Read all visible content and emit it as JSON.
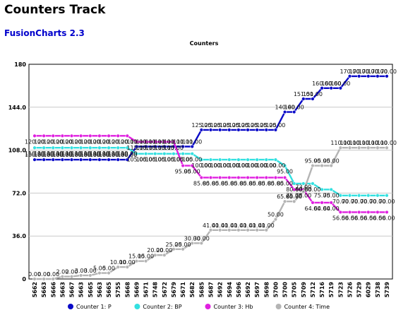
{
  "page": {
    "title": "Counters Track",
    "subtitle": "FusionCharts 2.3"
  },
  "chart_data": {
    "type": "line",
    "title": "Counters",
    "xlabel": "",
    "ylabel": "",
    "ylim": [
      0,
      180
    ],
    "y_ticks": [
      "0",
      "36.0",
      "72.0",
      "108.0",
      "144.0",
      "180"
    ],
    "grid": true,
    "legend_position": "bottom",
    "x": [
      "5662",
      "5663",
      "5666",
      "5663",
      "5667",
      "5663",
      "5665",
      "5663",
      "5665",
      "5755",
      "5668",
      "5669",
      "5671",
      "5748",
      "5672",
      "5679",
      "5671",
      "5682",
      "5685",
      "5687",
      "5692",
      "5694",
      "5696",
      "5692",
      "5697",
      "5698",
      "5700",
      "5700",
      "5705",
      "5709",
      "5712",
      "5716",
      "5719",
      "5723",
      "5726",
      "5729",
      "6029",
      "5738",
      "5739"
    ],
    "series": [
      {
        "name": "Counter 1: P",
        "color": "#0a0ac8",
        "values": [
          100,
          100,
          100,
          100,
          100,
          100,
          100,
          100,
          100,
          100,
          100,
          111,
          111,
          111,
          111,
          111,
          111,
          111,
          125,
          125,
          125,
          125,
          125,
          125,
          125,
          125,
          125,
          140,
          140,
          151,
          151,
          160,
          160,
          160,
          170,
          170,
          170,
          170,
          170
        ],
        "labels": [
          "100.00",
          "100.00",
          "100.00",
          "100.00",
          "100.00",
          "100.00",
          "100.00",
          "100.00",
          "100.00",
          "100.00",
          "100.00",
          "111.00",
          "111.00",
          "111.00",
          "111.00",
          "111.00",
          "111.00",
          "111.00",
          "125.00",
          "125.00",
          "125.00",
          "125.00",
          "125.00",
          "125.00",
          "125.00",
          "125.00",
          "125.00",
          "140.00",
          "140.00",
          "151.00",
          "151.00",
          "160.00",
          "160.00",
          "160.00",
          "170.00",
          "170.00",
          "170.00",
          "170.00",
          "170.00"
        ]
      },
      {
        "name": "Counter 2: BP",
        "color": "#33e0e0",
        "values": [
          110,
          110,
          110,
          110,
          110,
          110,
          110,
          110,
          110,
          110,
          110,
          105,
          105,
          105,
          105,
          105,
          105,
          105,
          100,
          100,
          100,
          100,
          100,
          100,
          100,
          100,
          100,
          95,
          80,
          80,
          80,
          75,
          75,
          70,
          70,
          70,
          70,
          70,
          70
        ],
        "labels": [
          "110.00",
          "110.00",
          "110.00",
          "110.00",
          "110.00",
          "110.00",
          "110.00",
          "110.00",
          "110.00",
          "110.00",
          "110.00",
          "105.00",
          "105.00",
          "105.00",
          "105.00",
          "105.00",
          "105.00",
          "105.00",
          "100.00",
          "100.00",
          "100.00",
          "100.00",
          "100.00",
          "100.00",
          "100.00",
          "100.00",
          "100.00",
          "95.00",
          "80.00",
          "80.00",
          "80.00",
          "75.00",
          "75.00",
          "70.00",
          "70.00",
          "70.00",
          "70.00",
          "70.00",
          "70.00"
        ]
      },
      {
        "name": "Counter 3: Hb",
        "color": "#e020e0",
        "values": [
          120,
          120,
          120,
          120,
          120,
          120,
          120,
          120,
          120,
          120,
          120,
          115,
          115,
          115,
          115,
          115,
          95,
          95,
          85,
          85,
          85,
          85,
          85,
          85,
          85,
          85,
          85,
          85,
          75,
          75,
          64,
          64,
          64,
          56,
          56,
          56,
          56,
          56,
          56
        ],
        "labels": [
          "120.00",
          "120.00",
          "120.00",
          "120.00",
          "120.00",
          "120.00",
          "120.00",
          "120.00",
          "120.00",
          "120.00",
          "120.00",
          "115.00",
          "115.00",
          "115.00",
          "115.00",
          "115.00",
          "95.00",
          "95.00",
          "85.00",
          "85.00",
          "85.00",
          "85.00",
          "85.00",
          "85.00",
          "85.00",
          "85.00",
          "85.00",
          "85.00",
          "75.00",
          "75.00",
          "64.00",
          "64.00",
          "64.00",
          "56.00",
          "56.00",
          "56.00",
          "56.00",
          "56.00",
          "56.00"
        ]
      },
      {
        "name": "Counter 4: Time",
        "color": "#b4b4b4",
        "values": [
          0,
          0,
          0,
          2,
          2,
          3,
          3,
          5,
          5,
          10,
          10,
          15,
          15,
          20,
          20,
          25,
          25,
          30,
          30,
          41,
          41,
          41,
          41,
          41,
          41,
          41,
          50,
          65,
          65,
          73,
          95,
          95,
          95,
          110,
          110,
          110,
          110,
          110,
          110
        ],
        "labels": [
          "0.00",
          "0.00",
          "0.00",
          "2.00",
          "2.00",
          "3.00",
          "3.00",
          "5.00",
          "5.00",
          "10.00",
          "10.00",
          "15.00",
          "15.00",
          "20.00",
          "20.00",
          "25.00",
          "25.00",
          "30.00",
          "30.00",
          "41.00",
          "41.00",
          "41.00",
          "41.00",
          "41.00",
          "41.00",
          "41.00",
          "50.00",
          "65.00",
          "65.00",
          "73.00",
          "95.00",
          "95.00",
          "95.00",
          "110.00",
          "110.00",
          "110.00",
          "110.00",
          "110.00",
          "110.00"
        ]
      }
    ]
  }
}
